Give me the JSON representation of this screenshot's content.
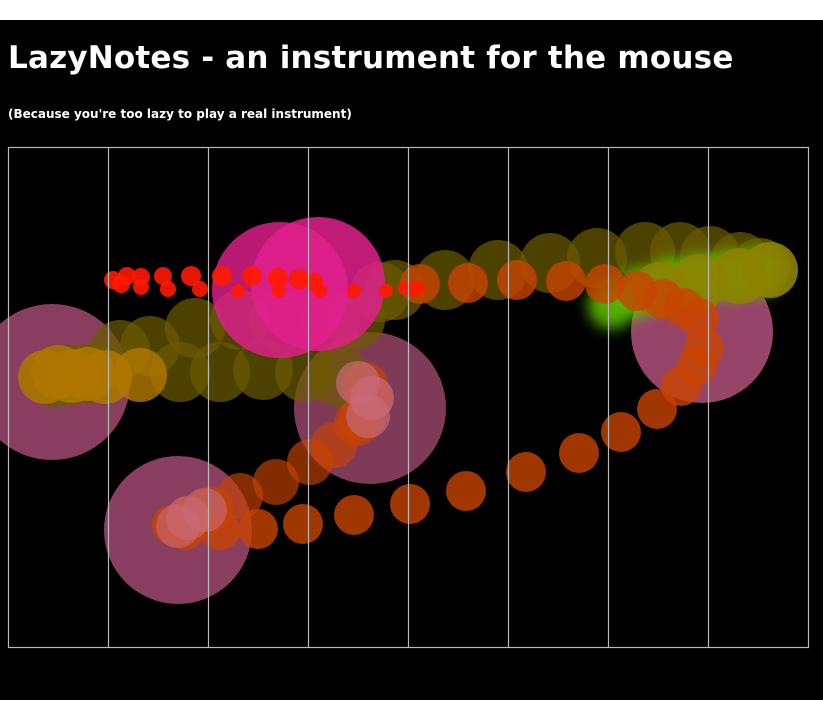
{
  "app": {
    "title": "LazyNotes - an instrument for the mouse",
    "subtitle": "(Because you're too lazy to play a real instrument)"
  },
  "instrument": {
    "lane_count": 8,
    "colors": {
      "background": "#000000",
      "grid": "#b9b9b9",
      "red": "#ff1a00",
      "orange": "#c84400",
      "olive": "#6b5a00",
      "amber": "#b07800",
      "yellow": "#8c8200",
      "pink": "#e0208c",
      "mauve": "#b0507a",
      "green": "#5ec800"
    }
  }
}
